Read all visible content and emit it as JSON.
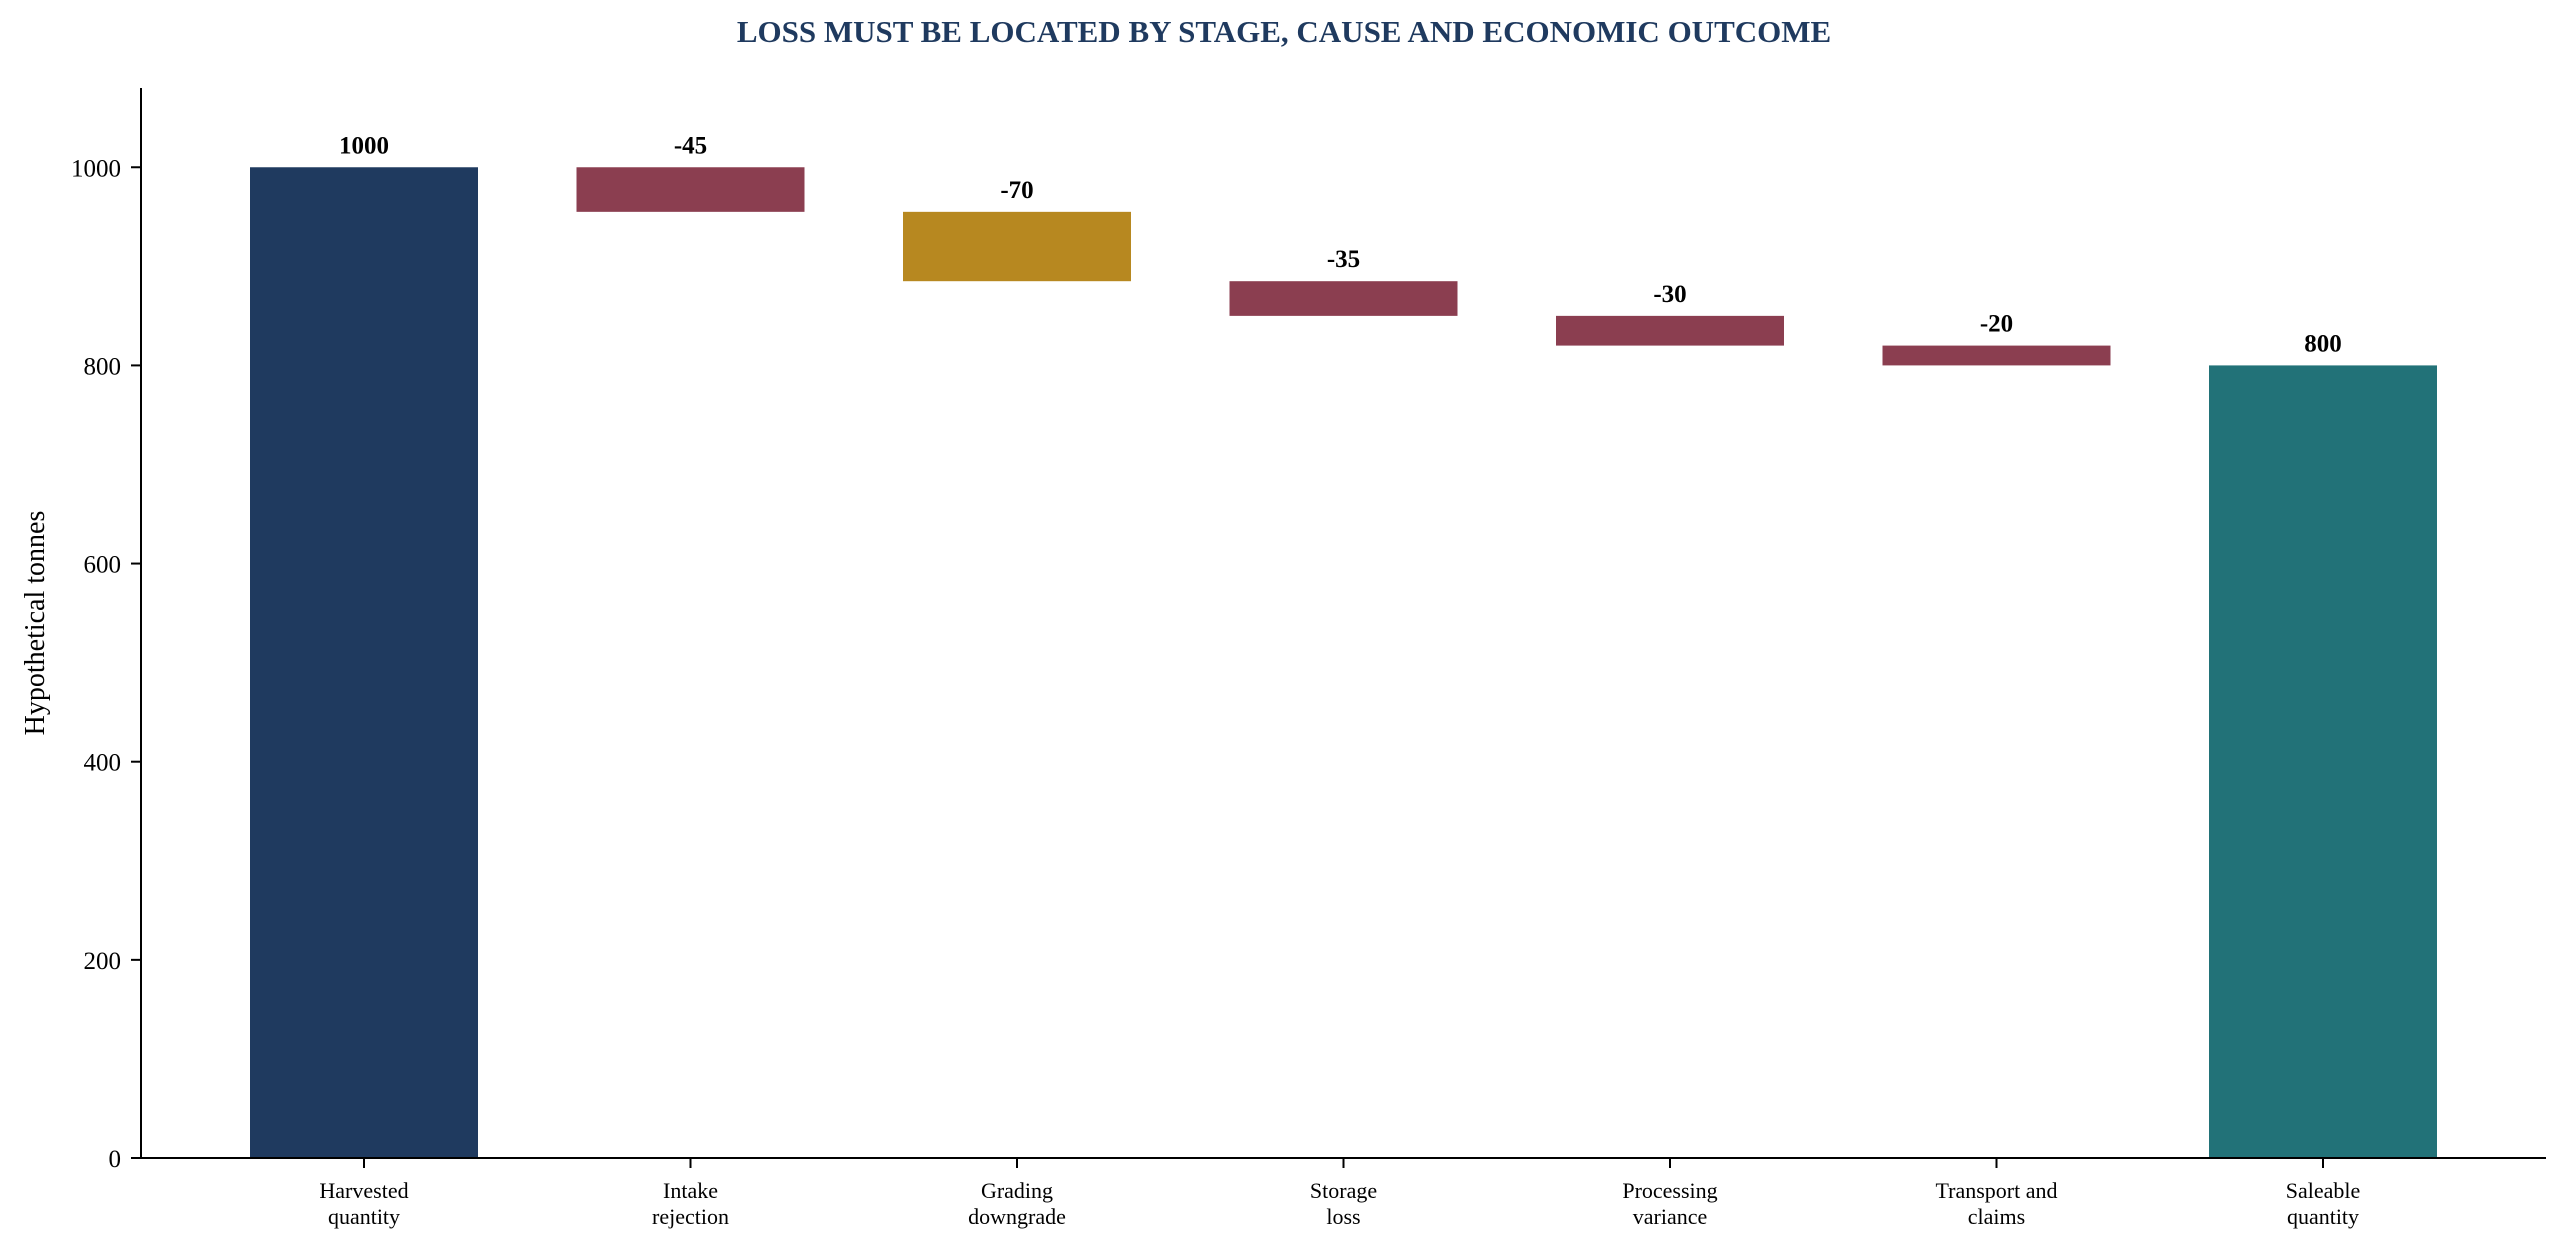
{
  "chart_data": {
    "type": "bar",
    "subtype": "waterfall",
    "title": "LOSS MUST BE LOCATED BY STAGE, CAUSE AND ECONOMIC OUTCOME",
    "xlabel": "",
    "ylabel": "Hypothetical tonnes",
    "ylim": [
      0,
      1080
    ],
    "yticks": [
      0,
      200,
      400,
      600,
      800,
      1000
    ],
    "grid": false,
    "legend": "none",
    "categories": [
      [
        "Harvested",
        "quantity"
      ],
      [
        "Intake",
        "rejection"
      ],
      [
        "Grading",
        "downgrade"
      ],
      [
        "Storage",
        "loss"
      ],
      [
        "Processing",
        "variance"
      ],
      [
        "Transport and",
        "claims"
      ],
      [
        "Saleable",
        "quantity"
      ]
    ],
    "bars": [
      {
        "kind": "total",
        "value": 1000,
        "label": "1000",
        "color": "#1f3a5f"
      },
      {
        "kind": "delta",
        "value": -45,
        "label": "-45",
        "color": "#8b3e50"
      },
      {
        "kind": "delta",
        "value": -70,
        "label": "-70",
        "color": "#b78820"
      },
      {
        "kind": "delta",
        "value": -35,
        "label": "-35",
        "color": "#8b3e50"
      },
      {
        "kind": "delta",
        "value": -30,
        "label": "-30",
        "color": "#8b3e50"
      },
      {
        "kind": "delta",
        "value": -20,
        "label": "-20",
        "color": "#8b3e50"
      },
      {
        "kind": "total",
        "value": 800,
        "label": "800",
        "color": "#227278"
      }
    ],
    "colors": {
      "title": "#1f3a5f",
      "axis": "#000000"
    }
  }
}
